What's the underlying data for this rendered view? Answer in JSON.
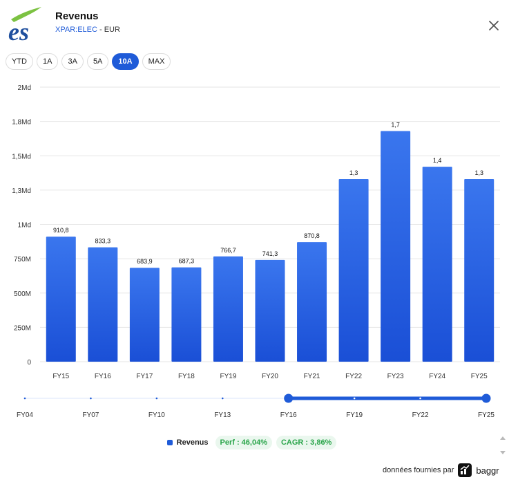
{
  "header": {
    "title": "Revenus",
    "ticker": "XPAR:ELEC",
    "currency_sep": " - ",
    "currency": "EUR"
  },
  "ranges": [
    {
      "label": "YTD",
      "active": false
    },
    {
      "label": "1A",
      "active": false
    },
    {
      "label": "3A",
      "active": false
    },
    {
      "label": "5A",
      "active": false
    },
    {
      "label": "10A",
      "active": true
    },
    {
      "label": "MAX",
      "active": false
    }
  ],
  "colors": {
    "bar_top": "#3a76ee",
    "bar_bottom": "#1a4fd6",
    "accent": "#1f5bd8",
    "perf": "#2aa54a"
  },
  "chart_data": {
    "type": "bar",
    "categories": [
      "FY15",
      "FY16",
      "FY17",
      "FY18",
      "FY19",
      "FY20",
      "FY21",
      "FY22",
      "FY23",
      "FY24",
      "FY25"
    ],
    "series": [
      {
        "name": "Revenus",
        "values": [
          910.8,
          833.3,
          683.9,
          687.3,
          766.7,
          741.3,
          870.8,
          1330,
          1680,
          1420,
          1330
        ]
      }
    ],
    "data_labels": [
      "910,8",
      "833,3",
      "683,9",
      "687,3",
      "766,7",
      "741,3",
      "870,8",
      "1,3",
      "1,7",
      "1,4",
      "1,3"
    ],
    "yticks": [
      {
        "value": 0,
        "label": "0"
      },
      {
        "value": 250,
        "label": "250M"
      },
      {
        "value": 500,
        "label": "500M"
      },
      {
        "value": 750,
        "label": "750M"
      },
      {
        "value": 1000,
        "label": "1Md"
      },
      {
        "value": 1250,
        "label": "1,3Md"
      },
      {
        "value": 1500,
        "label": "1,5Md"
      },
      {
        "value": 1750,
        "label": "1,8Md"
      },
      {
        "value": 2000,
        "label": "2Md"
      }
    ],
    "ylim": [
      0,
      2000
    ],
    "grid": true,
    "unit": "EUR millions"
  },
  "navigator": {
    "labels": [
      "FY04",
      "FY07",
      "FY10",
      "FY13",
      "FY16",
      "FY19",
      "FY22",
      "FY25"
    ],
    "selected_range": [
      "FY16",
      "FY25"
    ]
  },
  "legend": {
    "name": "Revenus",
    "perf": "Perf : 46,04%",
    "cagr": "CAGR : 3,86%"
  },
  "footer": {
    "text": "données fournies par",
    "brand": "baggr"
  }
}
